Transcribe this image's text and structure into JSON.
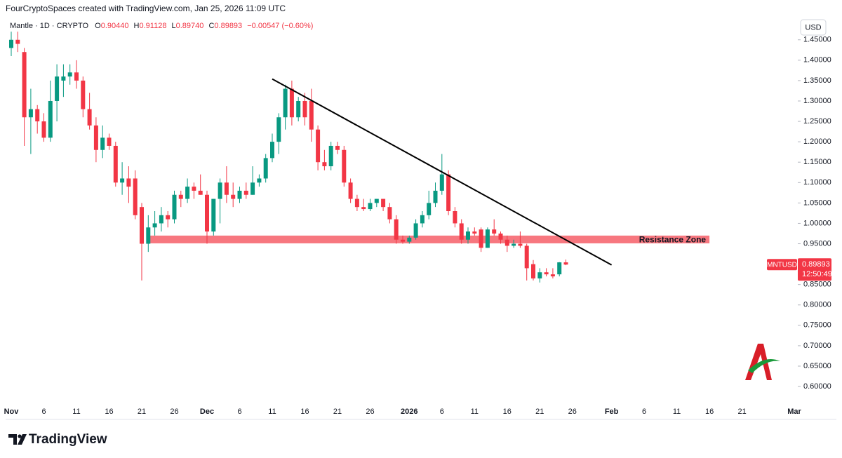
{
  "header": "FourCryptoSpaces created with TradingView.com, Jan 25, 2026 11:09 UTC",
  "footer": {
    "logo": "TradingView"
  },
  "chart_data": {
    "type": "candlestick",
    "currency": "USD",
    "legend": {
      "symbol": "Mantle · 1D · CRYPTO",
      "fields": [
        {
          "key": "O",
          "value": "0.90440"
        },
        {
          "key": "H",
          "value": "0.91128"
        },
        {
          "key": "L",
          "value": "0.89740"
        },
        {
          "key": "C",
          "value": "0.89893"
        }
      ],
      "change": "−0.00547 (−0.60%)"
    },
    "up_color": "#089981",
    "down_color": "#f23645",
    "x": [
      "Nov 1",
      "Nov 2",
      "Nov 3",
      "Nov 4",
      "Nov 5",
      "Nov 6",
      "Nov 7",
      "Nov 8",
      "Nov 9",
      "Nov 10",
      "Nov 11",
      "Nov 12",
      "Nov 13",
      "Nov 14",
      "Nov 15",
      "Nov 16",
      "Nov 17",
      "Nov 18",
      "Nov 19",
      "Nov 20",
      "Nov 21",
      "Nov 22",
      "Nov 23",
      "Nov 24",
      "Nov 25",
      "Nov 26",
      "Nov 27",
      "Nov 28",
      "Nov 29",
      "Nov 30",
      "Dec 1",
      "Dec 2",
      "Dec 3",
      "Dec 4",
      "Dec 5",
      "Dec 6",
      "Dec 7",
      "Dec 8",
      "Dec 9",
      "Dec 10",
      "Dec 11",
      "Dec 12",
      "Dec 13",
      "Dec 14",
      "Dec 15",
      "Dec 16",
      "Dec 17",
      "Dec 18",
      "Dec 19",
      "Dec 20",
      "Dec 21",
      "Dec 22",
      "Dec 23",
      "Dec 24",
      "Dec 25",
      "Dec 26",
      "Dec 27",
      "Dec 28",
      "Dec 29",
      "Dec 30",
      "Dec 31",
      "Jan 1",
      "Jan 2",
      "Jan 3",
      "Jan 4",
      "Jan 5",
      "Jan 6",
      "Jan 7",
      "Jan 8",
      "Jan 9",
      "Jan 10",
      "Jan 11",
      "Jan 12",
      "Jan 13",
      "Jan 14",
      "Jan 15",
      "Jan 16",
      "Jan 17",
      "Jan 18",
      "Jan 19",
      "Jan 20",
      "Jan 21",
      "Jan 22",
      "Jan 23",
      "Jan 24",
      "Jan 25"
    ],
    "open": [
      1.43,
      1.45,
      1.42,
      1.26,
      1.28,
      1.25,
      1.21,
      1.3,
      1.35,
      1.36,
      1.37,
      1.35,
      1.28,
      1.24,
      1.18,
      1.21,
      1.19,
      1.1,
      1.11,
      1.11,
      1.04,
      0.95,
      0.99,
      1.0,
      1.02,
      1.01,
      1.07,
      1.06,
      1.09,
      1.08,
      1.07,
      0.98,
      1.06,
      1.1,
      1.07,
      1.06,
      1.08,
      1.07,
      1.1,
      1.11,
      1.16,
      1.2,
      1.26,
      1.33,
      1.26,
      1.3,
      1.3,
      1.23,
      1.15,
      1.14,
      1.19,
      1.18,
      1.1,
      1.06,
      1.04,
      1.035,
      1.05,
      1.06,
      1.04,
      1.01,
      0.96,
      0.955,
      0.965,
      1.0,
      1.02,
      1.05,
      1.08,
      1.12,
      1.03,
      1.0,
      0.96,
      0.98,
      0.985,
      0.94,
      0.985,
      0.975,
      0.96,
      0.945,
      0.95,
      0.945,
      0.9,
      0.865,
      0.88,
      0.875,
      0.875,
      0.9044
    ],
    "high": [
      1.47,
      1.47,
      1.43,
      1.33,
      1.29,
      1.27,
      1.35,
      1.39,
      1.39,
      1.39,
      1.4,
      1.36,
      1.32,
      1.26,
      1.24,
      1.22,
      1.2,
      1.15,
      1.14,
      1.13,
      1.05,
      1.02,
      1.03,
      1.04,
      1.03,
      1.08,
      1.08,
      1.11,
      1.1,
      1.12,
      1.08,
      1.06,
      1.11,
      1.14,
      1.1,
      1.09,
      1.1,
      1.14,
      1.12,
      1.17,
      1.22,
      1.27,
      1.34,
      1.35,
      1.31,
      1.32,
      1.33,
      1.24,
      1.18,
      1.2,
      1.2,
      1.19,
      1.11,
      1.07,
      1.06,
      1.06,
      1.06,
      1.06,
      1.05,
      1.02,
      0.97,
      0.97,
      1.01,
      1.03,
      1.08,
      1.1,
      1.17,
      1.13,
      1.04,
      1.01,
      0.99,
      0.99,
      0.99,
      0.99,
      1.01,
      0.98,
      0.97,
      0.96,
      0.98,
      0.95,
      0.91,
      0.89,
      0.89,
      0.89,
      0.905,
      0.91128
    ],
    "low": [
      1.41,
      1.42,
      1.19,
      1.17,
      1.22,
      1.2,
      1.2,
      1.25,
      1.31,
      1.34,
      1.33,
      1.26,
      1.23,
      1.15,
      1.16,
      1.18,
      1.09,
      1.07,
      1.05,
      1.01,
      0.86,
      0.93,
      0.97,
      0.98,
      0.99,
      1.0,
      1.04,
      1.05,
      1.06,
      1.07,
      0.95,
      0.97,
      1.0,
      1.05,
      1.04,
      1.05,
      1.06,
      1.07,
      1.09,
      1.1,
      1.15,
      1.17,
      1.23,
      1.24,
      1.25,
      1.24,
      1.2,
      1.13,
      1.13,
      1.13,
      1.17,
      1.09,
      1.05,
      1.03,
      1.03,
      1.03,
      1.04,
      1.03,
      1.0,
      0.95,
      0.95,
      0.95,
      0.96,
      0.99,
      1.01,
      1.04,
      1.07,
      1.02,
      0.99,
      0.95,
      0.95,
      0.97,
      0.93,
      0.94,
      0.97,
      0.95,
      0.93,
      0.94,
      0.94,
      0.86,
      0.86,
      0.855,
      0.87,
      0.865,
      0.87,
      0.8974
    ],
    "close": [
      1.45,
      1.44,
      1.26,
      1.28,
      1.25,
      1.21,
      1.3,
      1.36,
      1.36,
      1.37,
      1.35,
      1.28,
      1.24,
      1.18,
      1.21,
      1.19,
      1.1,
      1.11,
      1.09,
      1.02,
      0.95,
      0.99,
      1.0,
      1.02,
      1.01,
      1.07,
      1.06,
      1.09,
      1.08,
      1.07,
      0.98,
      1.06,
      1.1,
      1.07,
      1.06,
      1.08,
      1.07,
      1.1,
      1.11,
      1.16,
      1.2,
      1.26,
      1.33,
      1.26,
      1.3,
      1.26,
      1.23,
      1.15,
      1.14,
      1.19,
      1.18,
      1.1,
      1.06,
      1.04,
      1.035,
      1.05,
      1.06,
      1.04,
      1.01,
      0.96,
      0.955,
      0.965,
      1.0,
      1.02,
      1.05,
      1.08,
      1.12,
      1.03,
      1.0,
      0.96,
      0.98,
      0.975,
      0.94,
      0.985,
      0.975,
      0.96,
      0.945,
      0.95,
      0.945,
      0.89,
      0.865,
      0.88,
      0.875,
      0.87,
      0.9044,
      0.89893
    ],
    "ylim": [
      0.564,
      1.496
    ],
    "yticks": [
      {
        "value": 1.45,
        "label": "1.45000"
      },
      {
        "value": 1.4,
        "label": "1.40000"
      },
      {
        "value": 1.35,
        "label": "1.35000"
      },
      {
        "value": 1.3,
        "label": "1.30000"
      },
      {
        "value": 1.25,
        "label": "1.25000"
      },
      {
        "value": 1.2,
        "label": "1.20000"
      },
      {
        "value": 1.15,
        "label": "1.15000"
      },
      {
        "value": 1.1,
        "label": "1.10000"
      },
      {
        "value": 1.05,
        "label": "1.05000"
      },
      {
        "value": 1.0,
        "label": "1.00000"
      },
      {
        "value": 0.95,
        "label": "0.95000"
      },
      {
        "value": 0.9,
        "label": "0.90000"
      },
      {
        "value": 0.85,
        "label": "0.85000"
      },
      {
        "value": 0.8,
        "label": "0.80000"
      },
      {
        "value": 0.75,
        "label": "0.75000"
      },
      {
        "value": 0.7,
        "label": "0.70000"
      },
      {
        "value": 0.65,
        "label": "0.65000"
      },
      {
        "value": 0.6,
        "label": "0.60000"
      }
    ],
    "xticks": [
      {
        "value": "Nov 1",
        "label": "Nov"
      },
      {
        "value": "Nov 6",
        "label": "6"
      },
      {
        "value": "Nov 11",
        "label": "11"
      },
      {
        "value": "Nov 16",
        "label": "16"
      },
      {
        "value": "Nov 21",
        "label": "21"
      },
      {
        "value": "Nov 26",
        "label": "26"
      },
      {
        "value": "Dec 1",
        "label": "Dec"
      },
      {
        "value": "Dec 6",
        "label": "6"
      },
      {
        "value": "Dec 11",
        "label": "11"
      },
      {
        "value": "Dec 16",
        "label": "16"
      },
      {
        "value": "Dec 21",
        "label": "21"
      },
      {
        "value": "Dec 26",
        "label": "26"
      },
      {
        "value": "Jan 1",
        "label": "2026"
      },
      {
        "value": "Jan 6",
        "label": "6"
      },
      {
        "value": "Jan 11",
        "label": "11"
      },
      {
        "value": "Jan 16",
        "label": "16"
      },
      {
        "value": "Jan 21",
        "label": "21"
      },
      {
        "value": "Jan 26",
        "label": "26"
      },
      {
        "value": "Feb 1",
        "label": "Feb"
      },
      {
        "value": "Feb 6",
        "label": "6"
      },
      {
        "value": "Feb 11",
        "label": "11"
      },
      {
        "value": "Feb 16",
        "label": "16"
      },
      {
        "value": "Feb 21",
        "label": "21"
      },
      {
        "value": "Mar 1",
        "label": "Mar"
      }
    ],
    "trendline": {
      "x": [
        "Dec 11",
        "Feb 1"
      ],
      "y": [
        1.354,
        0.898
      ],
      "color": "#000000"
    },
    "resistance_zone": {
      "label": "Resistance Zone",
      "x": [
        "Nov 22",
        "Feb 16"
      ],
      "y": [
        0.951,
        0.97
      ],
      "color": "#f7777f"
    },
    "last_price": {
      "symbol": "MNTUSD",
      "countdown": "12:50:49"
    }
  }
}
